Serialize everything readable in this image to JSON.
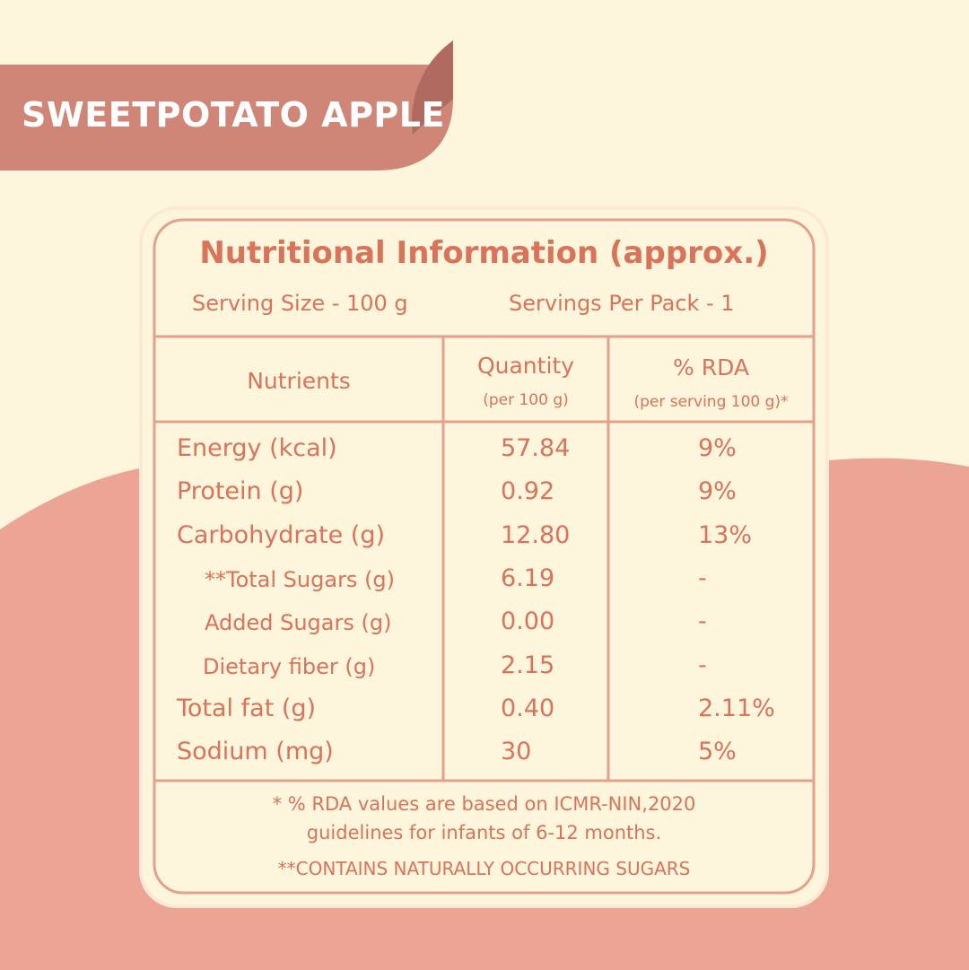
{
  "banner": {
    "title": "SWEETPOTATO APPLE"
  },
  "label": {
    "title": "Nutritional Information (approx.)",
    "serving_size": "Serving Size - 100 g",
    "servings_per_pack": "Servings Per Pack - 1",
    "table": {
      "headers": [
        {
          "title": "Nutrients"
        },
        {
          "title": "Quantity",
          "subtitle": "(per 100 g)"
        },
        {
          "title": "% RDA",
          "subtitle": "(per serving 100 g)*"
        }
      ],
      "rows": [
        [
          "Energy (kcal)",
          "57.84",
          "9%"
        ],
        [
          "Protein (g)",
          "0.92",
          "9%"
        ],
        [
          "Carbohydrate (g)",
          "12.80",
          "13%"
        ],
        [
          "**Total Sugars (g)",
          "6.19",
          "-"
        ],
        [
          "Added Sugars (g)",
          "0.00",
          "-"
        ],
        [
          "Dietary fiber (g)",
          "2.15",
          "-"
        ],
        [
          "Total fat (g)",
          "0.40",
          "2.11%"
        ],
        [
          "Sodium (mg)",
          "30",
          "5%"
        ]
      ]
    },
    "footnotes": [
      "* % RDA values are based on ICMR-NIN,2020",
      "guidelines for infants of 6-12 months.",
      "**CONTAINS NATURALLY OCCURRING SUGARS"
    ]
  }
}
